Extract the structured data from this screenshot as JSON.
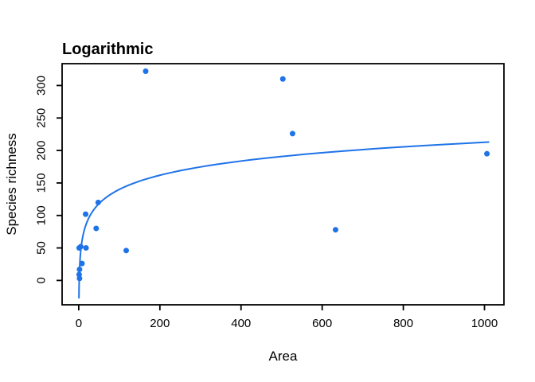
{
  "chart_data": {
    "type": "scatter",
    "title": "Logarithmic",
    "xlabel": "Area",
    "ylabel": "Species richness",
    "x_ticks": [
      0,
      200,
      400,
      600,
      800,
      1000
    ],
    "y_ticks": [
      0,
      50,
      100,
      150,
      200,
      250,
      300
    ],
    "xlim": [
      -41,
      1048
    ],
    "ylim": [
      -37.5,
      333.6
    ],
    "grid": false,
    "legend": "none",
    "background_color": "#FFFFFF",
    "axis_color": "#000000",
    "point_color": "#1E73E8",
    "line_color": "#1E73E8",
    "points": [
      {
        "x": 165,
        "y": 322
      },
      {
        "x": 503,
        "y": 310
      },
      {
        "x": 527,
        "y": 226
      },
      {
        "x": 1006,
        "y": 195
      },
      {
        "x": 633,
        "y": 78
      },
      {
        "x": 48,
        "y": 120
      },
      {
        "x": 17,
        "y": 102
      },
      {
        "x": 43,
        "y": 80
      },
      {
        "x": 117,
        "y": 46
      },
      {
        "x": 1,
        "y": 50
      },
      {
        "x": 5,
        "y": 52
      },
      {
        "x": 18,
        "y": 50
      },
      {
        "x": 8,
        "y": 26
      },
      {
        "x": 2,
        "y": 17
      },
      {
        "x": 1,
        "y": 9
      },
      {
        "x": 2,
        "y": 3
      }
    ],
    "fit_curve": {
      "model": "logarithmic",
      "intercept": -5,
      "slope": 31.5,
      "x_start": 0.5,
      "x_end": 1010
    }
  }
}
